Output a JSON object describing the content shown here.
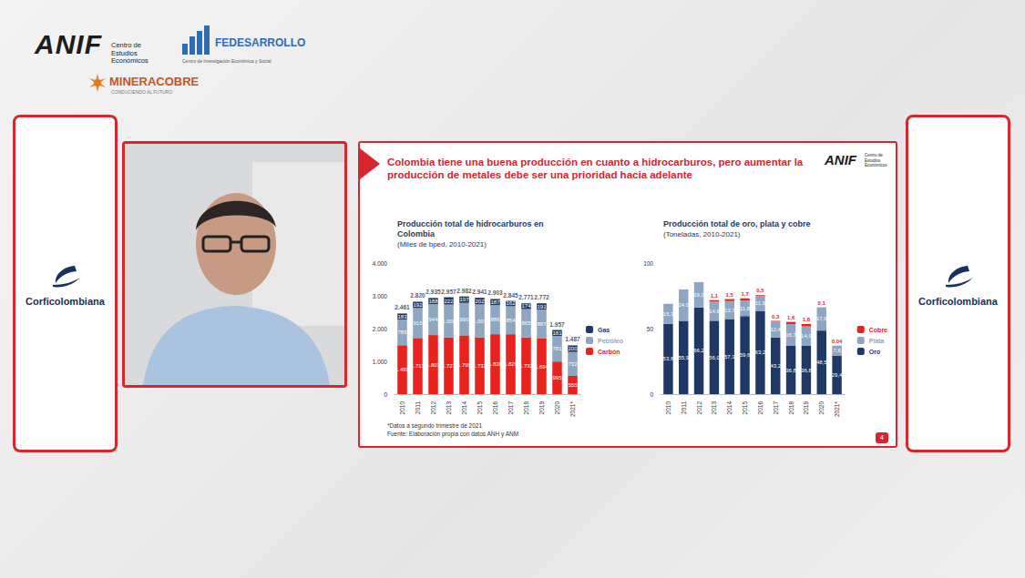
{
  "page": {
    "logos": {
      "anif": "ANIF",
      "anif_sub": "Centro de Estudios Económicos",
      "fedesarrollo": "FEDESARROLLO",
      "fedesarrollo_sub": "Centro de Investigación Económica y Social",
      "mineracobre": "MINERACOBRE",
      "mineracobre_sub": "CONDUCIENDO AL FUTURO"
    },
    "side_cards": [
      "Corficolombiana",
      "Corficolombiana"
    ],
    "slide": {
      "title": "Colombia tiene una buena producción en cuanto a hidrocarburos, pero aumentar la producción de metales debe ser una prioridad hacia adelante",
      "notes": [
        "*Datos a segundo trimestre de 2021",
        "Fuente: Elaboración propia con datos ANH y ANM"
      ],
      "page_number": 4
    }
  },
  "chart_data": [
    {
      "type": "bar",
      "stacked": true,
      "data_labels": true,
      "grid": false,
      "legend": "right",
      "title": "Producción total de hidrocarburos en Colombia",
      "subtitle": "(Miles de bped, 2010-2021)",
      "categories": [
        "2010",
        "2011",
        "2012",
        "2013",
        "2014",
        "2015",
        "2016",
        "2017",
        "2018",
        "2019",
        "2020",
        "2021*"
      ],
      "series": [
        {
          "name": "Carbón",
          "color": "#e8231e",
          "values": [
            1493,
            1713,
            1803,
            1727,
            1795,
            1732,
            1830,
            1829,
            1732,
            1694,
            995,
            555
          ],
          "value_labels": [
            "1.493",
            "1.713",
            "1.803",
            "1.727",
            "1.795",
            "1.732",
            "1.830",
            "1.829",
            "1.732",
            "1.694",
            "995",
            "555"
          ]
        },
        {
          "name": "Petróleo",
          "color": "#8ea6c1",
          "values": [
            785,
            915,
            944,
            1008,
            990,
            1007,
            886,
            854,
            865,
            887,
            781,
            732
          ],
          "value_labels": [
            "785",
            "915",
            "944",
            "1.008",
            "990",
            "1.007",
            "886",
            "854",
            "865",
            "887",
            "781",
            "732"
          ]
        },
        {
          "name": "Gas",
          "color": "#1f3864",
          "values": [
            183,
            192,
            188,
            222,
            197,
            202,
            187,
            162,
            174,
            191,
            181,
            200
          ],
          "value_labels": [
            "183",
            "192",
            "188",
            "222",
            "197",
            "202",
            "187",
            "162",
            "174",
            "191",
            "181",
            "200"
          ]
        }
      ],
      "totals": [
        2461,
        2820,
        2935,
        2957,
        2982,
        2941,
        2903,
        2845,
        2771,
        2772,
        1957,
        1487
      ],
      "total_labels": [
        "2.461",
        "2.820",
        "2.935",
        "2.957",
        "2.982",
        "2.941",
        "2.903",
        "2.845",
        "2.771",
        "2.772",
        "1.957",
        "1.487"
      ],
      "ylim": [
        0,
        4000
      ],
      "yticks": [
        0,
        {
          "value": 1000,
          "label": "1.000"
        },
        {
          "value": 2000,
          "label": "2.000"
        },
        {
          "value": 3000,
          "label": "3.000"
        },
        {
          "value": 4000,
          "label": "4.000"
        }
      ]
    },
    {
      "type": "bar",
      "stacked": true,
      "data_labels": true,
      "grid": false,
      "legend": "right",
      "title": "Producción total de oro, plata y cobre",
      "subtitle": "(Toneladas, 2010-2021)",
      "categories": [
        "2010",
        "2011",
        "2012",
        "2013",
        "2014",
        "2015",
        "2016",
        "2017",
        "2018",
        "2019",
        "2020",
        "2021*"
      ],
      "series": [
        {
          "name": "Oro",
          "color": "#1f3864",
          "values": [
            53.6,
            55.9,
            66.2,
            56.0,
            57.3,
            59.6,
            63.2,
            43.2,
            36.8,
            36.8,
            48.5,
            29.4
          ],
          "value_labels": [
            "53,6",
            "55,9",
            "66,2",
            "56,0",
            "57,3",
            "59,6",
            "63,2",
            "43,2",
            "36,8",
            "36,8",
            "48,5",
            "29,4"
          ]
        },
        {
          "name": "Plata",
          "color": "#8ea6c1",
          "values": [
            15.3,
            24.0,
            19.3,
            14.6,
            13.7,
            11.8,
            11.9,
            12.4,
            16.7,
            14.9,
            17.6,
            7.6
          ],
          "value_labels": [
            "15,3",
            "24,0",
            "19,3",
            "14,6",
            "13,7",
            "11,8",
            "11,9",
            "12,4",
            "16,7",
            "14,9",
            "17,6",
            "7,6"
          ]
        },
        {
          "name": "Cobre",
          "color": "#e8231e",
          "values": [
            null,
            null,
            null,
            1.1,
            1.5,
            1.7,
            0.5,
            0.3,
            1.6,
            1.8,
            0.1,
            0.04
          ],
          "value_labels": [
            null,
            null,
            null,
            "1,1",
            "1,5",
            "1,7",
            "0,5",
            "0,3",
            "1,6",
            "1,8",
            "0,1",
            "0,04"
          ]
        }
      ],
      "ylim": [
        0,
        100
      ],
      "yticks": [
        0,
        50,
        100
      ]
    }
  ]
}
